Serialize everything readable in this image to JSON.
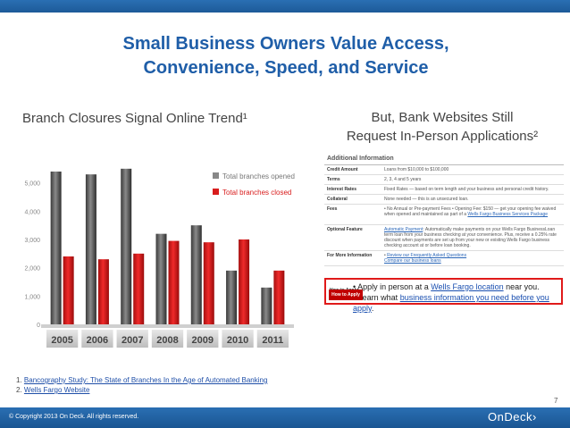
{
  "title": {
    "line1": "Small Business Owners Value Access,",
    "line2": "Convenience, Speed, and Service"
  },
  "left_heading": "Branch Closures Signal Online Trend¹",
  "right_heading": {
    "line1": "But, Bank Websites Still",
    "line2": "Request In-Person Applications²"
  },
  "colors": {
    "brand_blue": "#1f5ea8",
    "opened_bar": "#5a5a5a",
    "closed_bar": "#d81c1c",
    "highlight_red": "#e01a1a"
  },
  "chart_data": {
    "type": "bar",
    "categories": [
      "2005",
      "2006",
      "2007",
      "2008",
      "2009",
      "2010",
      "2011"
    ],
    "series": [
      {
        "name": "Total branches opened",
        "values": [
          5400,
          5300,
          5500,
          3200,
          3500,
          1900,
          1300
        ]
      },
      {
        "name": "Total branches closed",
        "values": [
          2400,
          2300,
          2500,
          2950,
          2900,
          3000,
          1900
        ]
      }
    ],
    "yticks": [
      "0",
      "1,000",
      "2,000",
      "3,000",
      "4,000",
      "5,000"
    ],
    "ylim": [
      0,
      6000
    ],
    "legend_position": "top-right"
  },
  "form": {
    "heading": "Additional Information",
    "rows": [
      {
        "key": "Credit Amount",
        "value": "Loans from $10,000 to $100,000"
      },
      {
        "key": "Terms",
        "value": "2, 3, 4 and 5 years"
      },
      {
        "key": "Interest Rates",
        "value": "Fixed Rates — based on term length and your business and personal credit history."
      },
      {
        "key": "Collateral",
        "value": "None needed — this is an unsecured loan."
      },
      {
        "key": "Fees",
        "value": "• No Annual or Pre-payment Fees  • Opening Fee: $150 — get your opening fee waived when opened and maintained as part of a",
        "link": "Wells Fargo Business Services Package"
      },
      {
        "key": "Optional Feature",
        "link": "Automatic Payment",
        "value": ": Automatically make payments on your Wells Fargo BusinessLoan term loan from your business checking at your convenience. Plus, receive a 0.25% rate discount when payments are set up from your new or existing Wells Fargo business checking account at or before loan booking."
      },
      {
        "key": "For More Information",
        "value": "•",
        "link": "Review our Frequently Asked Questions",
        "link2": "Compare our business loans"
      }
    ],
    "apply_label": "How to Apply",
    "apply_line1_prefix": "•  Apply in person at a ",
    "apply_line1_link": "Wells Fargo location",
    "apply_line1_suffix": " near you.",
    "apply_line2_prefix": "•  Learn what ",
    "apply_line2_link": "business information you need before you apply",
    "apply_line2_suffix": ".",
    "apply_button": "How to Apply"
  },
  "footnotes": [
    {
      "num": "1.",
      "text": "Bancography Study: The State of Branches In the Age of Automated Banking"
    },
    {
      "num": "2.",
      "text": "Wells Fargo Website"
    }
  ],
  "page_number": "7",
  "copyright": "© Copyright 2013 On Deck. All rights reserved.",
  "logo": "OnDeck"
}
